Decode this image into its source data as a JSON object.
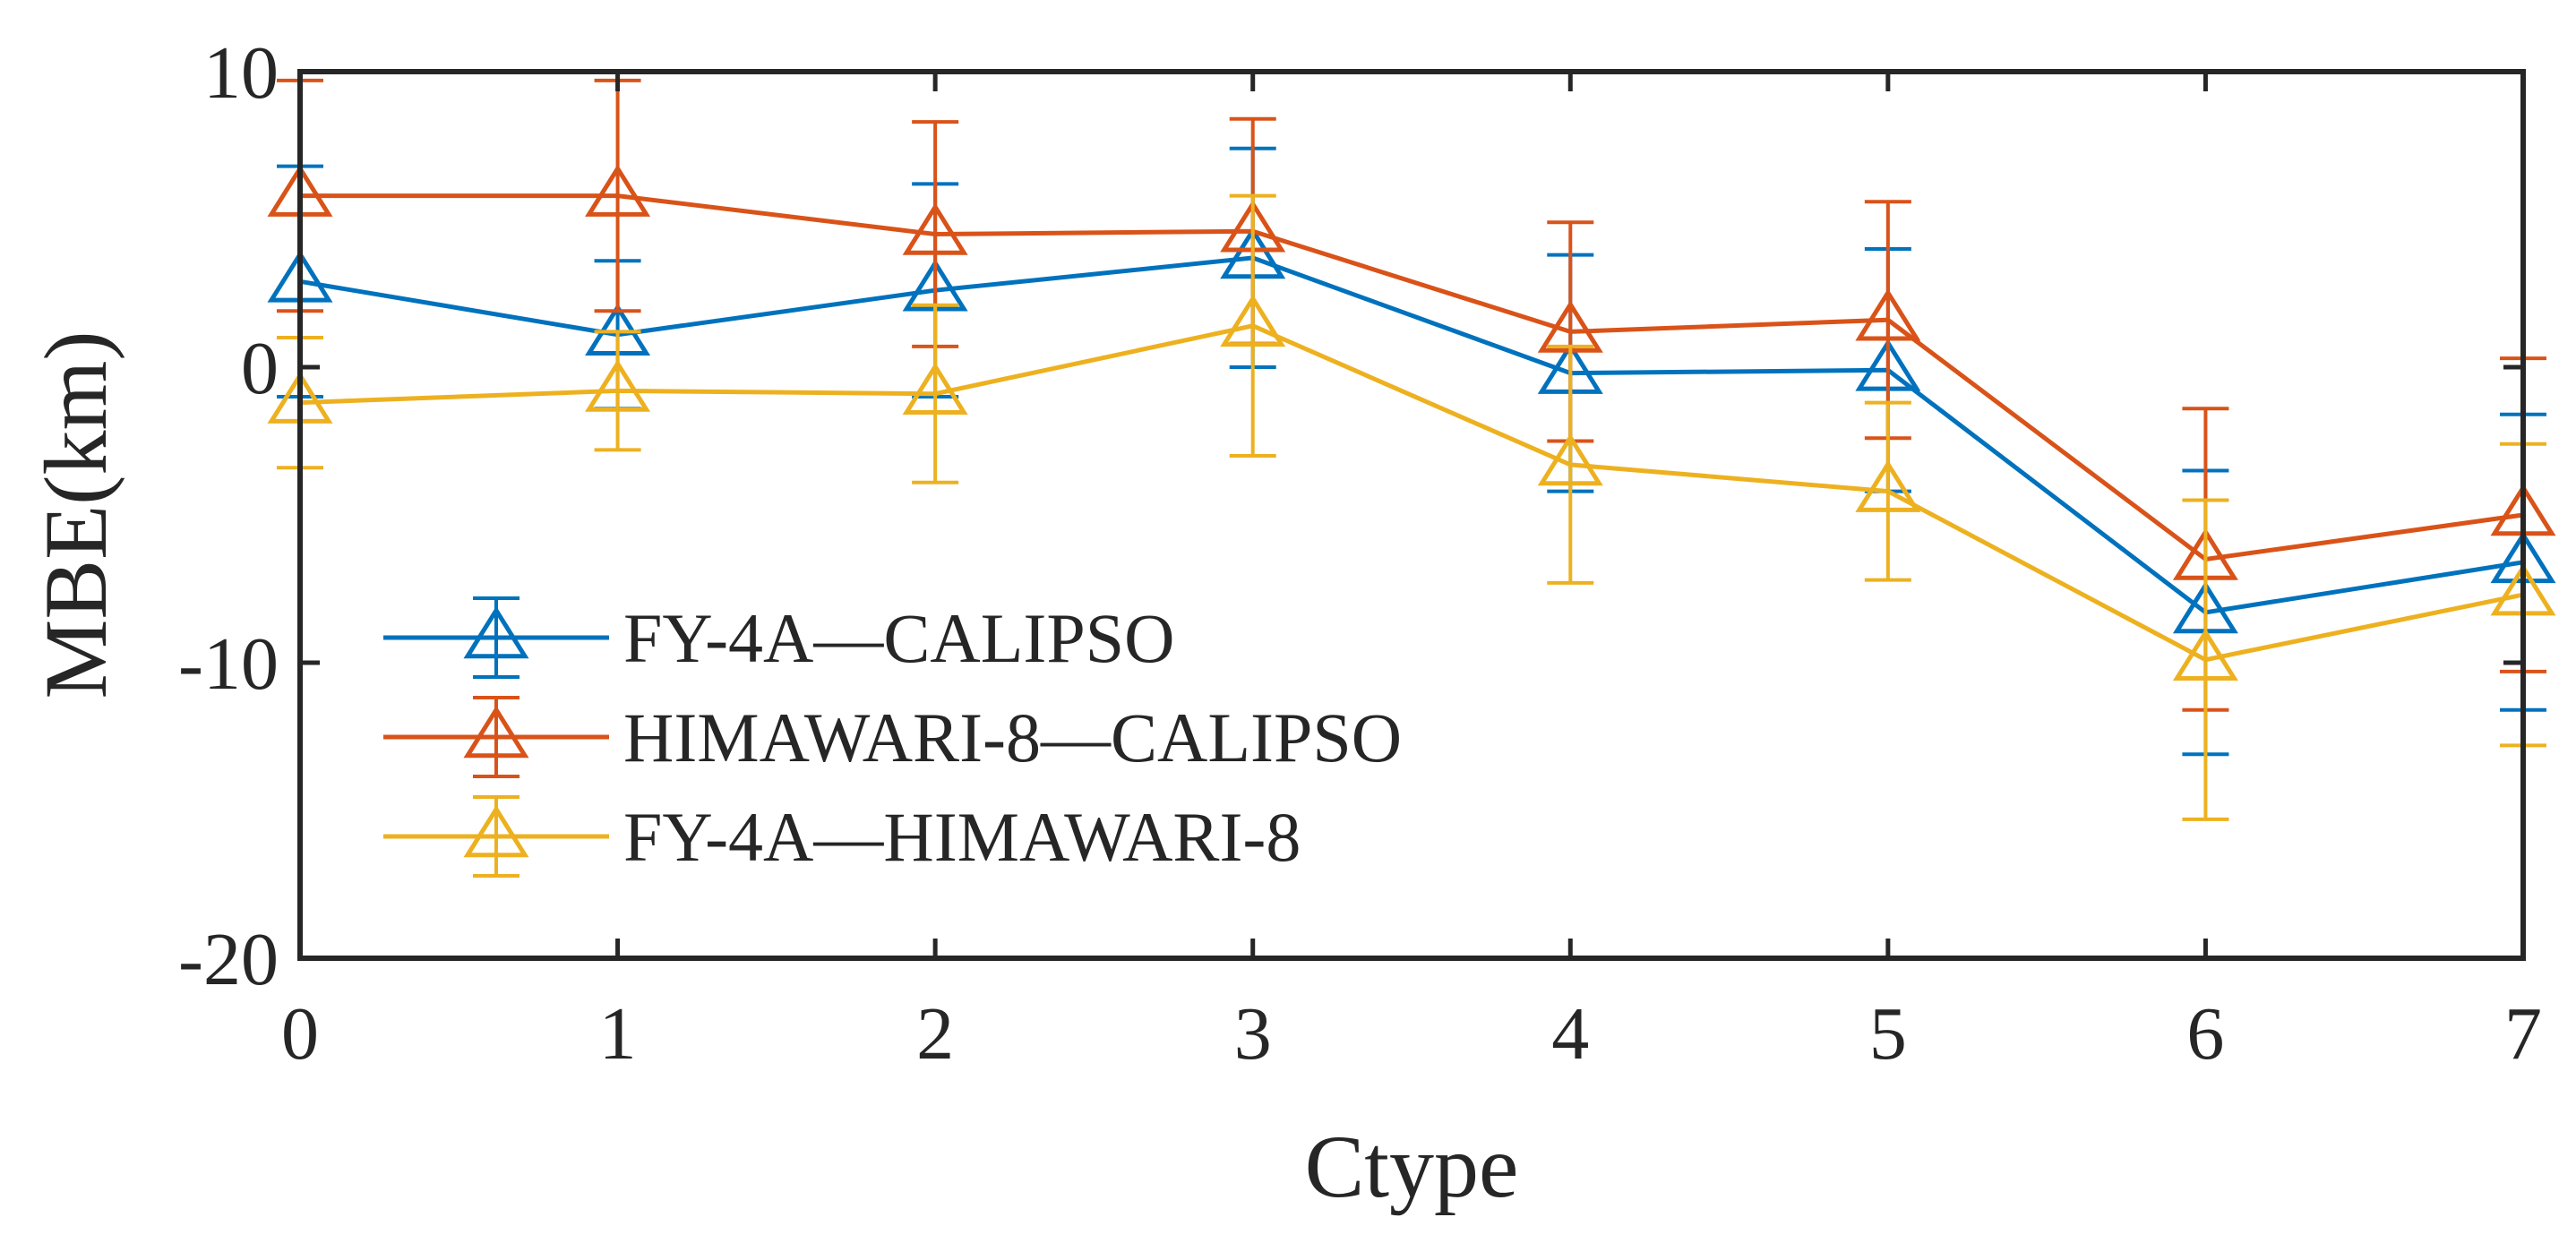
{
  "chart_data": {
    "type": "line",
    "title": "",
    "xlabel": "Ctype",
    "ylabel": "MBE(km)",
    "xlim": [
      0,
      7
    ],
    "ylim": [
      -20,
      10
    ],
    "xticks": [
      0,
      1,
      2,
      3,
      4,
      5,
      6,
      7
    ],
    "yticks": [
      -20,
      -10,
      0,
      10
    ],
    "xtick_labels": [
      "0",
      "1",
      "2",
      "3",
      "4",
      "5",
      "6",
      "7"
    ],
    "ytick_labels": [
      "-20",
      "-10",
      "0",
      "10"
    ],
    "legend_position": "left",
    "series": [
      {
        "name": "FY-4A—CALIPSO",
        "color": "#0072BD",
        "marker": "triangle",
        "x": [
          0,
          1,
          2,
          3,
          4,
          5,
          6,
          7
        ],
        "y": [
          2.9,
          1.1,
          2.6,
          3.7,
          -0.2,
          -0.1,
          -8.3,
          -6.6
        ],
        "err": [
          3.9,
          2.5,
          3.6,
          3.7,
          4.0,
          4.1,
          4.8,
          5.0
        ]
      },
      {
        "name": "HIMAWARI-8—CALIPSO",
        "color": "#D95319",
        "marker": "triangle",
        "x": [
          0,
          1,
          2,
          3,
          4,
          5,
          6,
          7
        ],
        "y": [
          5.8,
          5.8,
          4.5,
          4.6,
          1.2,
          1.6,
          -6.5,
          -5.0
        ],
        "err": [
          3.9,
          3.9,
          3.8,
          3.8,
          3.7,
          4.0,
          5.1,
          5.3
        ]
      },
      {
        "name": "FY-4A—HIMAWARI-8",
        "color": "#EDB120",
        "marker": "triangle",
        "x": [
          0,
          1,
          2,
          3,
          4,
          5,
          6,
          7
        ],
        "y": [
          -1.2,
          -0.8,
          -0.9,
          1.4,
          -3.3,
          -4.2,
          -9.9,
          -7.7
        ],
        "err": [
          2.2,
          2.0,
          3.0,
          4.4,
          4.0,
          3.0,
          5.4,
          5.1
        ]
      }
    ]
  }
}
